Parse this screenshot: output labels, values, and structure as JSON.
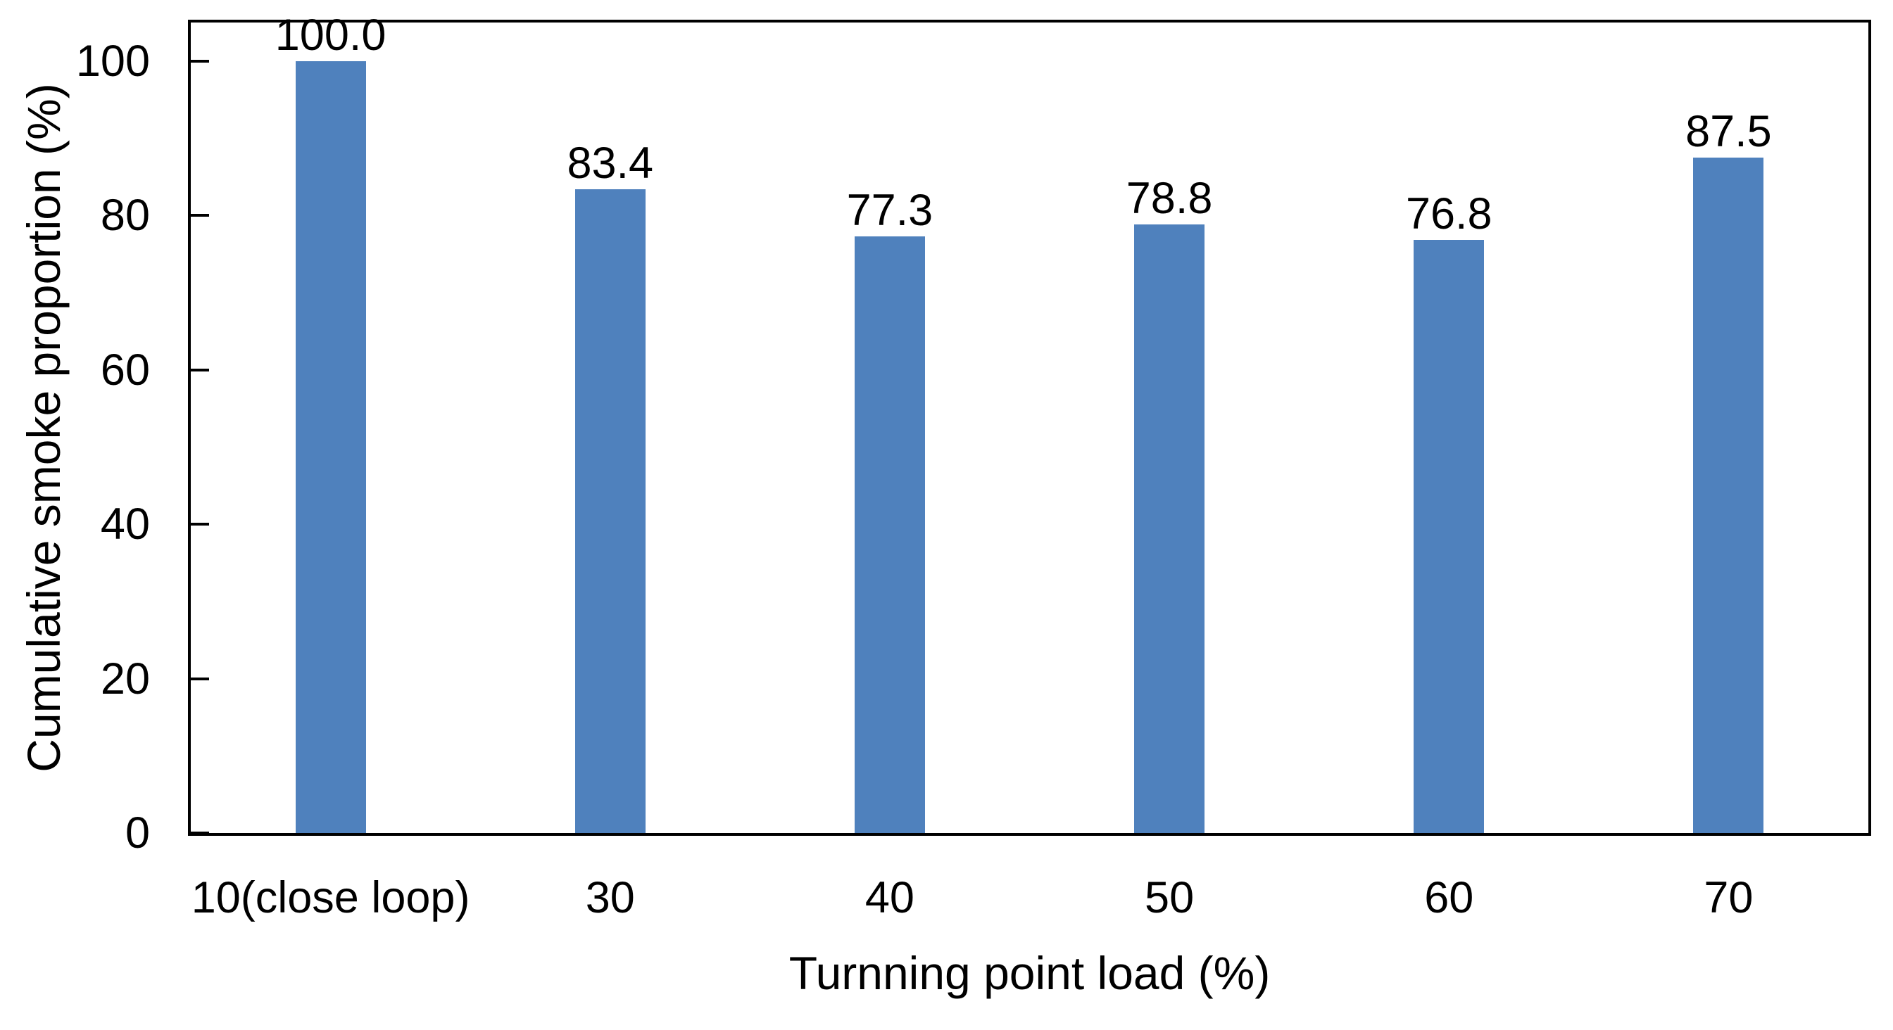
{
  "chart_data": {
    "type": "bar",
    "title": "",
    "xlabel": "Turnning point load (%)",
    "ylabel": "Cumulative smoke proportion (%)",
    "categories": [
      "10(close loop)",
      "30",
      "40",
      "50",
      "60",
      "70"
    ],
    "values": [
      100.0,
      83.4,
      77.3,
      78.8,
      76.8,
      87.5
    ],
    "value_labels": [
      "100.0",
      "83.4",
      "77.3",
      "78.8",
      "76.8",
      "87.5"
    ],
    "ylim": [
      0,
      105
    ],
    "yticks": [
      0,
      20,
      40,
      60,
      80,
      100
    ],
    "ytick_labels": [
      "0",
      "20",
      "40",
      "60",
      "80",
      "100"
    ],
    "grid": false,
    "legend": "none",
    "bar_color": "#4F81BD",
    "axis_color": "#000000",
    "label_color": "#000000"
  }
}
